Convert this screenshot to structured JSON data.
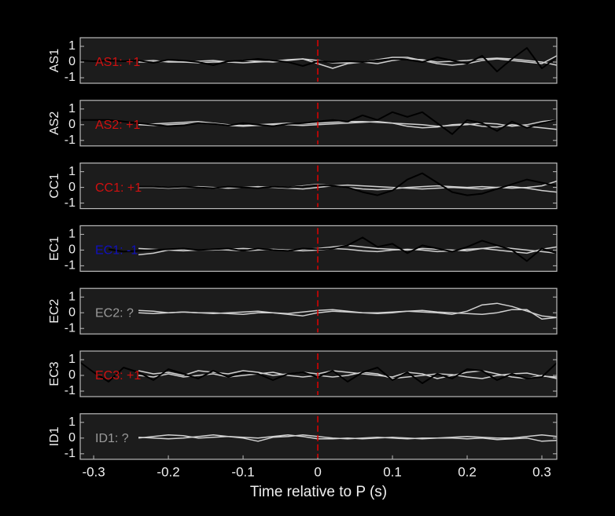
{
  "chart_data": [
    {
      "type": "line",
      "ylabel": "AS1",
      "annotation": "AS1: +1",
      "annotation_color": "#d01010",
      "vline": {
        "x": 0,
        "color": "#e00000"
      },
      "x": [
        -0.32,
        -0.3,
        -0.28,
        -0.26,
        -0.24,
        -0.22,
        -0.2,
        -0.18,
        -0.16,
        -0.14,
        -0.12,
        -0.1,
        -0.08,
        -0.06,
        -0.04,
        -0.02,
        0,
        0.02,
        0.04,
        0.06,
        0.08,
        0.1,
        0.12,
        0.14,
        0.16,
        0.18,
        0.2,
        0.22,
        0.24,
        0.26,
        0.28,
        0.3,
        0.32
      ],
      "xlim": [
        -0.318,
        0.32
      ],
      "ylim": [
        -1.35,
        1.55
      ],
      "yticks": [
        1,
        0,
        -1
      ],
      "series": [
        {
          "color": "#d0d0d0",
          "values": [
            null,
            null,
            null,
            null,
            0.05,
            0.1,
            0,
            0,
            0.05,
            0.1,
            0,
            -0.05,
            0,
            0.05,
            0.15,
            0.2,
            0.1,
            -0.05,
            -0.05,
            0,
            0.15,
            0.3,
            0.3,
            0.1,
            -0.1,
            -0.2,
            -0.1,
            0.1,
            0.2,
            0.1,
            0,
            -0.1,
            0.4
          ]
        },
        {
          "color": "#d0d0d0",
          "values": [
            null,
            null,
            null,
            null,
            0,
            0,
            0.05,
            0,
            -0.05,
            0,
            0,
            0.1,
            0.05,
            0,
            0.1,
            0.2,
            -0.1,
            -0.4,
            -0.1,
            0,
            -0.1,
            0.1,
            0.2,
            0.15,
            0,
            0.05,
            0.1,
            0.2,
            0.25,
            0.2,
            0.1,
            0,
            -0.2
          ]
        },
        {
          "color": "#000000",
          "values": [
            0.1,
            0.05,
            0.1,
            0.05,
            0.1,
            -0.05,
            0.15,
            0.1,
            0,
            -0.2,
            0.05,
            0.1,
            0.2,
            0.1,
            0,
            -0.25,
            0.05,
            0,
            0.05,
            0,
            0.1,
            0.2,
            0.15,
            0,
            0.3,
            0.1,
            -0.1,
            0.4,
            -0.6,
            0.2,
            0.9,
            -0.4,
            0.3
          ]
        }
      ]
    },
    {
      "type": "line",
      "ylabel": "AS2",
      "annotation": "AS2: +1",
      "annotation_color": "#d01010",
      "vline": {
        "x": 0,
        "color": "#e00000"
      },
      "x": [
        -0.32,
        -0.3,
        -0.28,
        -0.26,
        -0.24,
        -0.22,
        -0.2,
        -0.18,
        -0.16,
        -0.14,
        -0.12,
        -0.1,
        -0.08,
        -0.06,
        -0.04,
        -0.02,
        0,
        0.02,
        0.04,
        0.06,
        0.08,
        0.1,
        0.12,
        0.14,
        0.16,
        0.18,
        0.2,
        0.22,
        0.24,
        0.26,
        0.28,
        0.3,
        0.32
      ],
      "xlim": [
        -0.318,
        0.32
      ],
      "ylim": [
        -1.35,
        1.55
      ],
      "yticks": [
        1,
        0,
        -1
      ],
      "series": [
        {
          "color": "#d0d0d0",
          "values": [
            null,
            null,
            null,
            null,
            0,
            0.05,
            0.1,
            0.15,
            0.2,
            0.1,
            0,
            -0.05,
            0,
            0.05,
            0.1,
            0.05,
            0.1,
            0.15,
            0.2,
            0.2,
            0.15,
            0.1,
            0.05,
            0,
            -0.1,
            -0.05,
            0,
            0.1,
            0.05,
            -0.1,
            0,
            0.2,
            0.3
          ]
        },
        {
          "color": "#d0d0d0",
          "values": [
            null,
            null,
            null,
            null,
            0,
            -0.05,
            0,
            0.05,
            0.1,
            0.05,
            -0.05,
            -0.1,
            -0.05,
            0,
            0,
            -0.05,
            0,
            0.05,
            0.1,
            0.15,
            0.2,
            0.1,
            -0.1,
            -0.2,
            -0.15,
            0,
            0.05,
            -0.1,
            -0.15,
            0,
            -0.1,
            -0.2,
            -0.3
          ]
        },
        {
          "color": "#000000",
          "values": [
            0.3,
            0.3,
            0.3,
            0.2,
            0.1,
            0,
            -0.1,
            -0.05,
            0.1,
            0.05,
            -0.05,
            0.1,
            0,
            -0.1,
            0.05,
            0.1,
            0.2,
            0.3,
            0.2,
            0.6,
            0.3,
            0.8,
            0.5,
            0.8,
            0.1,
            -0.6,
            0.3,
            0.1,
            -0.4,
            0.2,
            -0.2,
            0.1,
            0.3
          ]
        }
      ]
    },
    {
      "type": "line",
      "ylabel": "CC1",
      "annotation": "CC1: +1",
      "annotation_color": "#d01010",
      "vline": {
        "x": 0,
        "color": "#e00000"
      },
      "x": [
        -0.32,
        -0.3,
        -0.28,
        -0.26,
        -0.24,
        -0.22,
        -0.2,
        -0.18,
        -0.16,
        -0.14,
        -0.12,
        -0.1,
        -0.08,
        -0.06,
        -0.04,
        -0.02,
        0,
        0.02,
        0.04,
        0.06,
        0.08,
        0.1,
        0.12,
        0.14,
        0.16,
        0.18,
        0.2,
        0.22,
        0.24,
        0.26,
        0.28,
        0.3,
        0.32
      ],
      "xlim": [
        -0.318,
        0.32
      ],
      "ylim": [
        -1.35,
        1.55
      ],
      "yticks": [
        1,
        0,
        -1
      ],
      "series": [
        {
          "color": "#d0d0d0",
          "values": [
            null,
            null,
            null,
            null,
            0,
            0.05,
            0,
            0,
            0.05,
            0,
            -0.05,
            0,
            0,
            0.05,
            0,
            0.1,
            0.2,
            0.1,
            0,
            -0.1,
            -0.15,
            -0.1,
            0,
            0.05,
            0.1,
            0.05,
            0,
            0.05,
            0,
            -0.05,
            0,
            0.1,
            0.4
          ]
        },
        {
          "color": "#d0d0d0",
          "values": [
            null,
            null,
            null,
            null,
            0,
            0,
            -0.05,
            0,
            0,
            -0.05,
            0,
            0,
            0.05,
            0,
            -0.05,
            -0.1,
            0,
            0.1,
            0.15,
            0.1,
            0.05,
            0,
            -0.05,
            -0.1,
            -0.05,
            0,
            -0.05,
            -0.1,
            0,
            0.05,
            -0.05,
            -0.2,
            -0.3
          ]
        },
        {
          "color": "#000000",
          "values": [
            null,
            null,
            null,
            null,
            0.05,
            0.05,
            0,
            0.05,
            0,
            -0.05,
            0.05,
            0,
            -0.05,
            0.05,
            0,
            0.05,
            0.15,
            0.1,
            0,
            -0.3,
            -0.5,
            -0.2,
            0.5,
            0.9,
            0.3,
            -0.3,
            -0.5,
            -0.4,
            -0.1,
            0.2,
            0.5,
            0.3,
            0.1
          ]
        }
      ]
    },
    {
      "type": "line",
      "ylabel": "EC1",
      "annotation": "EC1: -1",
      "annotation_color": "#1010c0",
      "vline": {
        "x": 0,
        "color": "#e00000"
      },
      "x": [
        -0.32,
        -0.3,
        -0.28,
        -0.26,
        -0.24,
        -0.22,
        -0.2,
        -0.18,
        -0.16,
        -0.14,
        -0.12,
        -0.1,
        -0.08,
        -0.06,
        -0.04,
        -0.02,
        0,
        0.02,
        0.04,
        0.06,
        0.08,
        0.1,
        0.12,
        0.14,
        0.16,
        0.18,
        0.2,
        0.22,
        0.24,
        0.26,
        0.28,
        0.3,
        0.32
      ],
      "xlim": [
        -0.318,
        0.32
      ],
      "ylim": [
        -1.35,
        1.55
      ],
      "yticks": [
        1,
        0,
        -1
      ],
      "series": [
        {
          "color": "#d0d0d0",
          "values": [
            null,
            null,
            null,
            null,
            -0.3,
            -0.2,
            0,
            0.05,
            0,
            0,
            0.05,
            0.1,
            0.05,
            0,
            0,
            0.05,
            0.1,
            0.2,
            0.3,
            0.2,
            0.1,
            0.05,
            0,
            0.1,
            0.05,
            0,
            -0.05,
            0.1,
            0.2,
            0.1,
            0,
            -0.1,
            -0.2
          ]
        },
        {
          "color": "#d0d0d0",
          "values": [
            null,
            null,
            null,
            null,
            0.1,
            0.05,
            0,
            -0.05,
            0,
            0.05,
            0,
            -0.05,
            0,
            0.05,
            0,
            -0.05,
            0,
            0.1,
            0.05,
            -0.05,
            -0.1,
            0,
            0.05,
            0,
            -0.1,
            -0.05,
            0.05,
            0.1,
            0,
            -0.1,
            -0.2,
            0.05,
            0.2
          ]
        },
        {
          "color": "#000000",
          "values": [
            null,
            null,
            0.05,
            -0.1,
            -0.05,
            0,
            0.05,
            0.1,
            0,
            0.05,
            0.1,
            -0.05,
            0.1,
            0,
            -0.05,
            0.1,
            0.05,
            0.1,
            0.3,
            0.8,
            0.2,
            0.4,
            -0.2,
            0.3,
            0.1,
            -0.1,
            0.2,
            0.6,
            0.3,
            0,
            -0.7,
            0.1,
            -0.2
          ]
        }
      ]
    },
    {
      "type": "line",
      "ylabel": "EC2",
      "annotation": "EC2: ?",
      "annotation_color": "#9a9a9a",
      "vline": {
        "x": 0,
        "color": "#e00000"
      },
      "x": [
        -0.32,
        -0.3,
        -0.28,
        -0.26,
        -0.24,
        -0.22,
        -0.2,
        -0.18,
        -0.16,
        -0.14,
        -0.12,
        -0.1,
        -0.08,
        -0.06,
        -0.04,
        -0.02,
        0,
        0.02,
        0.04,
        0.06,
        0.08,
        0.1,
        0.12,
        0.14,
        0.16,
        0.18,
        0.2,
        0.22,
        0.24,
        0.26,
        0.28,
        0.3,
        0.32
      ],
      "xlim": [
        -0.318,
        0.32
      ],
      "ylim": [
        -1.35,
        1.55
      ],
      "yticks": [
        1,
        0,
        -1
      ],
      "series": [
        {
          "color": "#d0d0d0",
          "values": [
            null,
            null,
            null,
            null,
            0.15,
            0.1,
            0,
            0.05,
            0,
            -0.05,
            0,
            0.05,
            0.1,
            0,
            -0.05,
            0.05,
            0.15,
            0.2,
            0.1,
            0,
            -0.05,
            0,
            0.1,
            0.05,
            0,
            -0.1,
            0.1,
            0.5,
            0.6,
            0.4,
            0.1,
            -0.2,
            -0.3
          ]
        },
        {
          "color": "#d0d0d0",
          "values": [
            null,
            null,
            null,
            null,
            0,
            -0.05,
            0,
            0.05,
            0,
            0,
            -0.05,
            -0.1,
            0,
            0,
            -0.1,
            -0.2,
            0,
            0.1,
            0.05,
            0,
            0,
            0.05,
            0.1,
            0.15,
            0.05,
            0,
            -0.05,
            -0.1,
            0,
            0.2,
            0.2,
            -0.4,
            -0.3
          ]
        }
      ]
    },
    {
      "type": "line",
      "ylabel": "EC3",
      "annotation": "EC3: +1",
      "annotation_color": "#d01010",
      "vline": {
        "x": 0,
        "color": "#e00000"
      },
      "x": [
        -0.32,
        -0.3,
        -0.28,
        -0.26,
        -0.24,
        -0.22,
        -0.2,
        -0.18,
        -0.16,
        -0.14,
        -0.12,
        -0.1,
        -0.08,
        -0.06,
        -0.04,
        -0.02,
        0,
        0.02,
        0.04,
        0.06,
        0.08,
        0.1,
        0.12,
        0.14,
        0.16,
        0.18,
        0.2,
        0.22,
        0.24,
        0.26,
        0.28,
        0.3,
        0.32
      ],
      "xlim": [
        -0.318,
        0.32
      ],
      "ylim": [
        -1.35,
        1.55
      ],
      "yticks": [
        1,
        0,
        -1
      ],
      "series": [
        {
          "color": "#d0d0d0",
          "values": [
            null,
            null,
            null,
            null,
            0.3,
            0.1,
            0.2,
            0,
            0.3,
            0.2,
            0.1,
            0.3,
            0.2,
            0,
            0.1,
            0.2,
            0.1,
            0.3,
            0.2,
            0.1,
            0,
            -0.1,
            0.2,
            0.1,
            -0.2,
            0,
            0.2,
            0.3,
            0.1,
            -0.1,
            -0.2,
            0,
            -0.2
          ]
        },
        {
          "color": "#d0d0d0",
          "values": [
            null,
            null,
            null,
            null,
            0,
            -0.1,
            0.1,
            -0.1,
            0,
            0.1,
            -0.1,
            0,
            0.1,
            0.2,
            0,
            -0.1,
            0,
            -0.1,
            0,
            0.2,
            0.1,
            -0.2,
            -0.1,
            0,
            0.1,
            0.05,
            -0.1,
            -0.2,
            0,
            0.1,
            0.15,
            -0.05,
            -0.1
          ]
        },
        {
          "color": "#000000",
          "values": [
            0.9,
            0.2,
            -0.4,
            0.5,
            0.2,
            -0.3,
            0.4,
            0.1,
            -0.2,
            0.3,
            -0.1,
            0.2,
            0.1,
            -0.3,
            0.1,
            0.2,
            -0.1,
            0.3,
            -0.4,
            0.2,
            0.5,
            -0.3,
            0.2,
            -0.5,
            0.1,
            -0.2,
            0.4,
            0.3,
            -0.3,
            0.1,
            -0.2,
            -0.1,
            0.8
          ]
        }
      ]
    },
    {
      "type": "line",
      "ylabel": "ID1",
      "annotation": "ID1: ?",
      "annotation_color": "#9a9a9a",
      "vline": {
        "x": 0,
        "color": "#e00000"
      },
      "x": [
        -0.32,
        -0.3,
        -0.28,
        -0.26,
        -0.24,
        -0.22,
        -0.2,
        -0.18,
        -0.16,
        -0.14,
        -0.12,
        -0.1,
        -0.08,
        -0.06,
        -0.04,
        -0.02,
        0,
        0.02,
        0.04,
        0.06,
        0.08,
        0.1,
        0.12,
        0.14,
        0.16,
        0.18,
        0.2,
        0.22,
        0.24,
        0.26,
        0.28,
        0.3,
        0.32
      ],
      "xlim": [
        -0.318,
        0.32
      ],
      "ylim": [
        -1.35,
        1.55
      ],
      "yticks": [
        1,
        0,
        -1
      ],
      "xticks": [
        -0.3,
        -0.2,
        -0.1,
        0,
        0.1,
        0.2,
        0.3
      ],
      "xlabel": "Time relative to P (s)",
      "series": [
        {
          "color": "#d0d0d0",
          "values": [
            null,
            null,
            null,
            null,
            0,
            0.1,
            0.2,
            0.15,
            0,
            0.05,
            0.1,
            0,
            -0.2,
            0.05,
            0.1,
            0.2,
            0.1,
            0,
            -0.05,
            0,
            0.05,
            0,
            -0.05,
            0,
            0,
            0.05,
            0.1,
            0.05,
            0,
            0,
            0.1,
            0.2,
            0.1
          ]
        },
        {
          "color": "#d0d0d0",
          "values": [
            null,
            null,
            null,
            null,
            0.05,
            0,
            -0.05,
            0,
            0.1,
            0.2,
            0.1,
            0.05,
            0,
            0.1,
            0.2,
            0.1,
            -0.05,
            -0.05,
            0,
            -0.05,
            0,
            0.05,
            0,
            -0.05,
            0,
            0,
            -0.05,
            0,
            -0.1,
            -0.05,
            0,
            -0.2,
            -0.15
          ]
        }
      ]
    }
  ]
}
